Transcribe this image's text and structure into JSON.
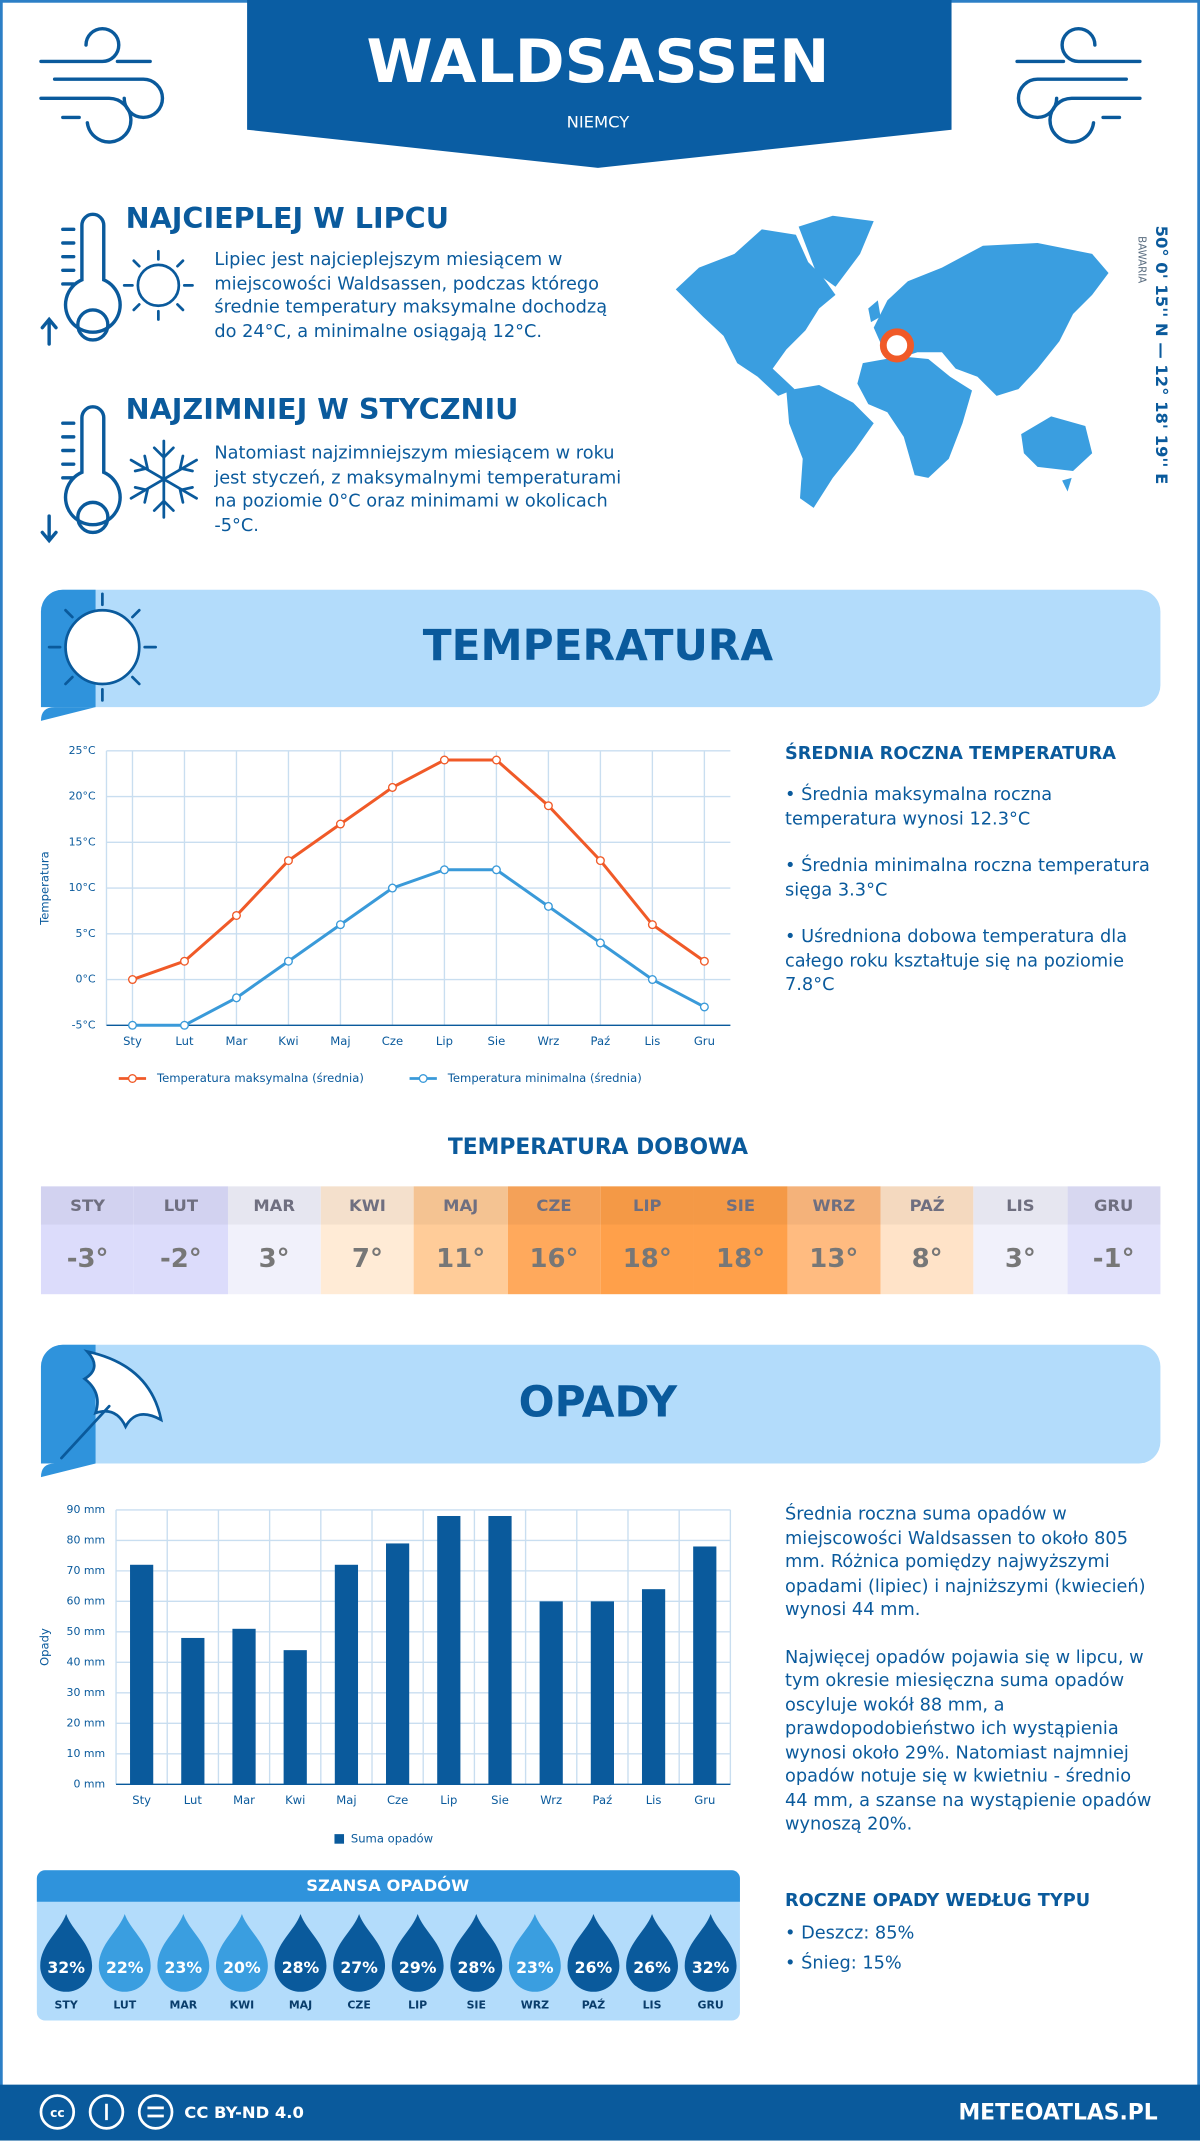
{
  "header": {
    "title": "WALDSASSEN",
    "country": "NIEMCY"
  },
  "warmest": {
    "title": "NAJCIEPLEJ W LIPCU",
    "text": "Lipiec jest najcieplejszym miesiącem w miejscowości Waldsassen, podczas którego średnie temperatury maksymalne dochodzą do 24°C, a minimalne osiągają 12°C."
  },
  "coldest": {
    "title": "NAJZIMNIEJ W STYCZNIU",
    "text": "Natomiast najzimniejszym miesiącem w roku jest styczeń, z maksymalnymi temperaturami na poziomie 0°C oraz minimami w okolicach -5°C."
  },
  "location": {
    "coordinates": "50° 0' 15'' N — 12° 18' 19'' E",
    "region": "BAWARIA"
  },
  "temperature": {
    "heading": "TEMPERATURA",
    "summary": {
      "title": "ŚREDNIA ROCZNA TEMPERATURA",
      "items": [
        "• Średnia maksymalna roczna temperatura wynosi 12.3°C",
        "• Średnia minimalna roczna temperatura sięga 3.3°C",
        "• Uśredniona dobowa temperatura dla całego roku kształtuje się na poziomie 7.8°C"
      ]
    }
  },
  "daily_temperature": {
    "title": "TEMPERATURA DOBOWA",
    "months": [
      "STY",
      "LUT",
      "MAR",
      "KWI",
      "MAJ",
      "CZE",
      "LIP",
      "SIE",
      "WRZ",
      "PAŹ",
      "LIS",
      "GRU"
    ],
    "values": [
      "-3°",
      "-2°",
      "3°",
      "7°",
      "11°",
      "16°",
      "18°",
      "18°",
      "13°",
      "8°",
      "3°",
      "-1°"
    ],
    "colors": [
      "#dcdcfb",
      "#dcdcfb",
      "#f1f1fb",
      "#ffebd6",
      "#ffcc99",
      "#ffa95c",
      "#ffa04a",
      "#ffa04a",
      "#ffbb80",
      "#ffe3c8",
      "#f1f1fb",
      "#e1e1fb"
    ]
  },
  "precipitation": {
    "heading": "OPADY",
    "paragraphs": [
      "Średnia roczna suma opadów w miejscowości Waldsassen to około 805 mm. Różnica pomiędzy najwyższymi opadami (lipiec) i najniższymi (kwiecień) wynosi 44 mm.",
      "Najwięcej opadów pojawia się w lipcu, w tym okresie miesięczna suma opadów oscyluje wokół 88 mm, a prawdopodobieństwo ich wystąpienia wynosi około 29%. Natomiast najmniej opadów notuje się w kwietniu - średnio 44 mm, a szanse na wystąpienie opadów wynoszą 20%."
    ],
    "types": {
      "title": "ROCZNE OPADY WEDŁUG TYPU",
      "items": [
        "• Deszcz: 85%",
        "• Śnieg: 15%"
      ]
    }
  },
  "precipitation_chance": {
    "title": "SZANSA OPADÓW",
    "months": [
      "STY",
      "LUT",
      "MAR",
      "KWI",
      "MAJ",
      "CZE",
      "LIP",
      "SIE",
      "WRZ",
      "PAŹ",
      "LIS",
      "GRU"
    ],
    "values": [
      "32%",
      "22%",
      "23%",
      "20%",
      "28%",
      "27%",
      "29%",
      "28%",
      "23%",
      "26%",
      "26%",
      "32%"
    ],
    "colors": [
      "#0a5a9c",
      "#3a9ee0",
      "#3a9ee0",
      "#3a9ee0",
      "#0a5a9c",
      "#0a5a9c",
      "#0a5a9c",
      "#0a5a9c",
      "#3a9ee0",
      "#0a5a9c",
      "#0a5a9c",
      "#0a5a9c"
    ]
  },
  "footer": {
    "license": "CC BY-ND 4.0",
    "site": "METEOATLAS.PL"
  },
  "chart_data": [
    {
      "type": "line",
      "y_label": "Temperatura",
      "categories": [
        "Sty",
        "Lut",
        "Mar",
        "Kwi",
        "Maj",
        "Cze",
        "Lip",
        "Sie",
        "Wrz",
        "Paź",
        "Lis",
        "Gru"
      ],
      "series": [
        {
          "name": "Temperatura maksymalna (średnia)",
          "color": "#f05a28",
          "values": [
            0,
            2,
            7,
            13,
            17,
            21,
            24,
            24,
            19,
            13,
            6,
            2
          ]
        },
        {
          "name": "Temperatura minimalna (średnia)",
          "color": "#3a9ad9",
          "values": [
            -5,
            -5,
            -2,
            2,
            6,
            10,
            12,
            12,
            8,
            4,
            0,
            -3
          ]
        }
      ],
      "ylim": [
        -5,
        25
      ],
      "yticks": [
        {
          "value": -5,
          "label": "-5°C"
        },
        {
          "value": 0,
          "label": "0°C"
        },
        {
          "value": 5,
          "label": "5°C"
        },
        {
          "value": 10,
          "label": "10°C"
        },
        {
          "value": 15,
          "label": "15°C"
        },
        {
          "value": 20,
          "label": "20°C"
        },
        {
          "value": 25,
          "label": "25°C"
        }
      ],
      "grid": true,
      "legend": "bottom"
    },
    {
      "type": "bar",
      "y_label": "Opady",
      "categories": [
        "Sty",
        "Lut",
        "Mar",
        "Kwi",
        "Maj",
        "Cze",
        "Lip",
        "Sie",
        "Wrz",
        "Paź",
        "Lis",
        "Gru"
      ],
      "series": [
        {
          "name": "Suma opadów",
          "color": "#0a5a9c",
          "values": [
            72,
            48,
            51,
            44,
            72,
            79,
            88,
            88,
            60,
            60,
            64,
            78
          ]
        }
      ],
      "ylim": [
        0,
        90
      ],
      "yticks": [
        {
          "value": 0,
          "label": "0 mm"
        },
        {
          "value": 10,
          "label": "10 mm"
        },
        {
          "value": 20,
          "label": "20 mm"
        },
        {
          "value": 30,
          "label": "30 mm"
        },
        {
          "value": 40,
          "label": "40 mm"
        },
        {
          "value": 50,
          "label": "50 mm"
        },
        {
          "value": 60,
          "label": "60 mm"
        },
        {
          "value": 70,
          "label": "70 mm"
        },
        {
          "value": 80,
          "label": "80 mm"
        },
        {
          "value": 90,
          "label": "90 mm"
        }
      ],
      "grid": true,
      "legend": "bottom"
    }
  ]
}
